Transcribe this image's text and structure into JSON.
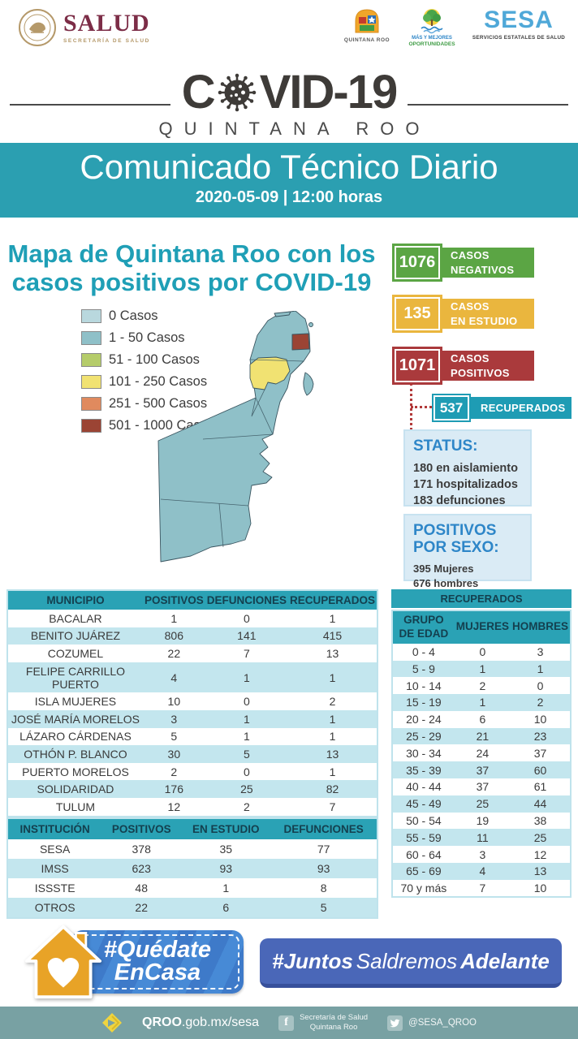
{
  "header": {
    "salud": {
      "title": "SALUD",
      "subtitle": "SECRETARÍA DE SALUD"
    },
    "qroo_crest": {
      "caption": "QUINTANA ROO"
    },
    "oportunidades": {
      "line1": "MÁS Y MEJORES",
      "line2": "OPORTUNIDADES"
    },
    "sesa": {
      "title": "SESA",
      "subtitle": "SERVICIOS ESTATALES DE SALUD"
    }
  },
  "covid_logo": {
    "prefix": "C",
    "suffix": "VID-19",
    "subtitle": "QUINTANA ROO"
  },
  "banner": {
    "title": "Comunicado Técnico Diario",
    "datetime": "2020-05-09 | 12:00 horas",
    "bg": "#2b9fb1"
  },
  "map_section": {
    "title_line1": "Mapa de Quintana Roo con los",
    "title_line2": "casos positivos por COVID-19",
    "legend": [
      {
        "label": "0 Casos",
        "color": "#b9d8de"
      },
      {
        "label": "1 - 50 Casos",
        "color": "#8fc0c8"
      },
      {
        "label": "51 - 100 Casos",
        "color": "#b5cc6a"
      },
      {
        "label": "101 - 250 Casos",
        "color": "#f1e272"
      },
      {
        "label": "251 - 500 Casos",
        "color": "#e08a5e"
      },
      {
        "label": "501 - 1000 Casos",
        "color": "#9b4434"
      }
    ]
  },
  "stats": [
    {
      "value": "1076",
      "line1": "CASOS",
      "line2": "NEGATIVOS",
      "color": "#5ba544"
    },
    {
      "value": "135",
      "line1": "CASOS",
      "line2": "EN ESTUDIO",
      "color": "#eab63e"
    },
    {
      "value": "1071",
      "line1": "CASOS",
      "line2": "POSITIVOS",
      "color": "#aa3a3c"
    }
  ],
  "recovered": {
    "value": "537",
    "label": "RECUPERADOS",
    "color": "#1e9cb4"
  },
  "status_box": {
    "title": "STATUS:",
    "lines": [
      "180 en aislamiento",
      "171 hospitalizados",
      "183 defunciones"
    ]
  },
  "sex_box": {
    "title": "POSITIVOS POR SEXO:",
    "lines": [
      "395 Mujeres",
      "676 hombres"
    ]
  },
  "municipality_table": {
    "headers": [
      "MUNICIPIO",
      "POSITIVOS",
      "DEFUNCIONES",
      "RECUPERADOS"
    ],
    "rows": [
      [
        "BACALAR",
        "1",
        "0",
        "1"
      ],
      [
        "BENITO JUÁREZ",
        "806",
        "141",
        "415"
      ],
      [
        "COZUMEL",
        "22",
        "7",
        "13"
      ],
      [
        "FELIPE CARRILLO PUERTO",
        "4",
        "1",
        "1"
      ],
      [
        "ISLA MUJERES",
        "10",
        "0",
        "2"
      ],
      [
        "JOSÉ MARÍA MORELOS",
        "3",
        "1",
        "1"
      ],
      [
        "LÁZARO CÁRDENAS",
        "5",
        "1",
        "1"
      ],
      [
        "OTHÓN P. BLANCO",
        "30",
        "5",
        "13"
      ],
      [
        "PUERTO MORELOS",
        "2",
        "0",
        "1"
      ],
      [
        "SOLIDARIDAD",
        "176",
        "25",
        "82"
      ],
      [
        "TULUM",
        "12",
        "2",
        "7"
      ]
    ]
  },
  "institution_table": {
    "headers": [
      "INSTITUCIÓN",
      "POSITIVOS",
      "EN ESTUDIO",
      "DEFUNCIONES"
    ],
    "rows": [
      [
        "SESA",
        "378",
        "35",
        "77"
      ],
      [
        "IMSS",
        "623",
        "93",
        "93"
      ],
      [
        "ISSSTE",
        "48",
        "1",
        "8"
      ],
      [
        "OTROS",
        "22",
        "6",
        "5"
      ]
    ]
  },
  "age_table": {
    "title": "RECUPERADOS",
    "headers": [
      "GRUPO DE EDAD",
      "MUJERES",
      "HOMBRES"
    ],
    "rows": [
      [
        "0 - 4",
        "0",
        "3"
      ],
      [
        "5 - 9",
        "1",
        "1"
      ],
      [
        "10 - 14",
        "2",
        "0"
      ],
      [
        "15 - 19",
        "1",
        "2"
      ],
      [
        "20 - 24",
        "6",
        "10"
      ],
      [
        "25 - 29",
        "21",
        "23"
      ],
      [
        "30 - 34",
        "24",
        "37"
      ],
      [
        "35 - 39",
        "37",
        "60"
      ],
      [
        "40 - 44",
        "37",
        "61"
      ],
      [
        "45 - 49",
        "25",
        "44"
      ],
      [
        "50 - 54",
        "19",
        "38"
      ],
      [
        "55 - 59",
        "11",
        "25"
      ],
      [
        "60 - 64",
        "3",
        "12"
      ],
      [
        "65 - 69",
        "4",
        "13"
      ],
      [
        "70 y más",
        "7",
        "10"
      ]
    ]
  },
  "footer": {
    "quedate": {
      "line1": "#Quédate",
      "line2": "EnCasa"
    },
    "juntos": {
      "p1": "#Juntos",
      "p2": "Saldremos",
      "p3": "Adelante"
    },
    "bar": {
      "website_bold": "QROO",
      "website_rest": ".gob.mx/sesa",
      "facebook_glyph": "f",
      "facebook_line1": "Secretaría de Salud",
      "facebook_line2": "Quintana Roo",
      "twitter_handle": "@SESA_QROO"
    }
  }
}
